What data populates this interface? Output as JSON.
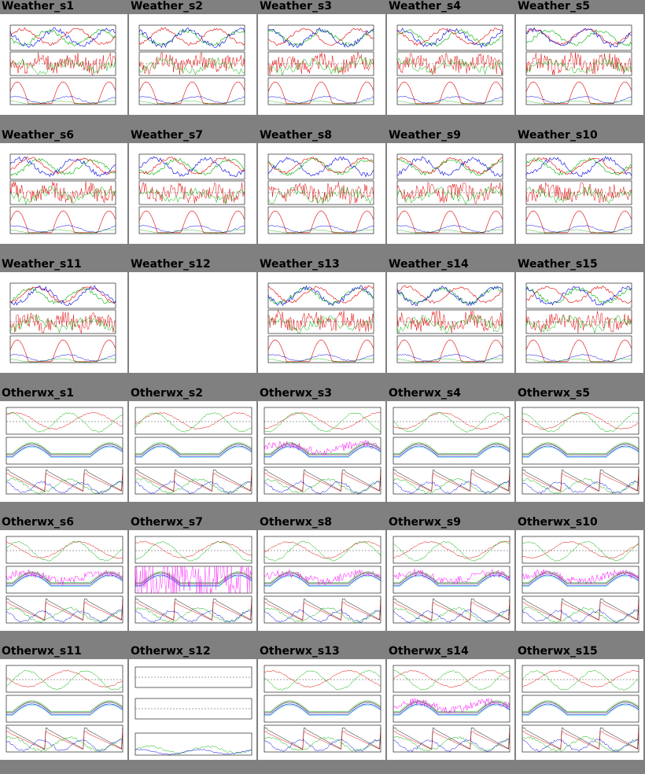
{
  "page": {
    "background": "#808080",
    "columns": 5
  },
  "series_colors": {
    "red": "#e00000",
    "green": "#00b000",
    "blue": "#0000e0",
    "cyan": "#00c0c0",
    "magenta": "#ff00ff",
    "black": "#000000"
  },
  "weather_plots": [
    {
      "title": "Weather_s1"
    },
    {
      "title": "Weather_s2"
    },
    {
      "title": "Weather_s3"
    },
    {
      "title": "Weather_s4"
    },
    {
      "title": "Weather_s5"
    },
    {
      "title": "Weather_s6"
    },
    {
      "title": "Weather_s7"
    },
    {
      "title": "Weather_s8"
    },
    {
      "title": "Weather_s9"
    },
    {
      "title": "Weather_s10"
    },
    {
      "title": "Weather_s11"
    },
    {
      "title": "Weather_s12",
      "blank": true
    },
    {
      "title": "Weather_s13"
    },
    {
      "title": "Weather_s14"
    },
    {
      "title": "Weather_s15"
    }
  ],
  "otherwx_plots": [
    {
      "title": "Otherwx_s1"
    },
    {
      "title": "Otherwx_s2"
    },
    {
      "title": "Otherwx_s3",
      "magenta": true
    },
    {
      "title": "Otherwx_s4"
    },
    {
      "title": "Otherwx_s5"
    },
    {
      "title": "Otherwx_s6",
      "magenta": true
    },
    {
      "title": "Otherwx_s7",
      "spiky": true
    },
    {
      "title": "Otherwx_s8",
      "magenta": true
    },
    {
      "title": "Otherwx_s9",
      "magenta": true
    },
    {
      "title": "Otherwx_s10",
      "magenta": true
    },
    {
      "title": "Otherwx_s11"
    },
    {
      "title": "Otherwx_s12",
      "empty": true
    },
    {
      "title": "Otherwx_s13"
    },
    {
      "title": "Otherwx_s14",
      "magenta": true
    },
    {
      "title": "Otherwx_s15"
    }
  ]
}
